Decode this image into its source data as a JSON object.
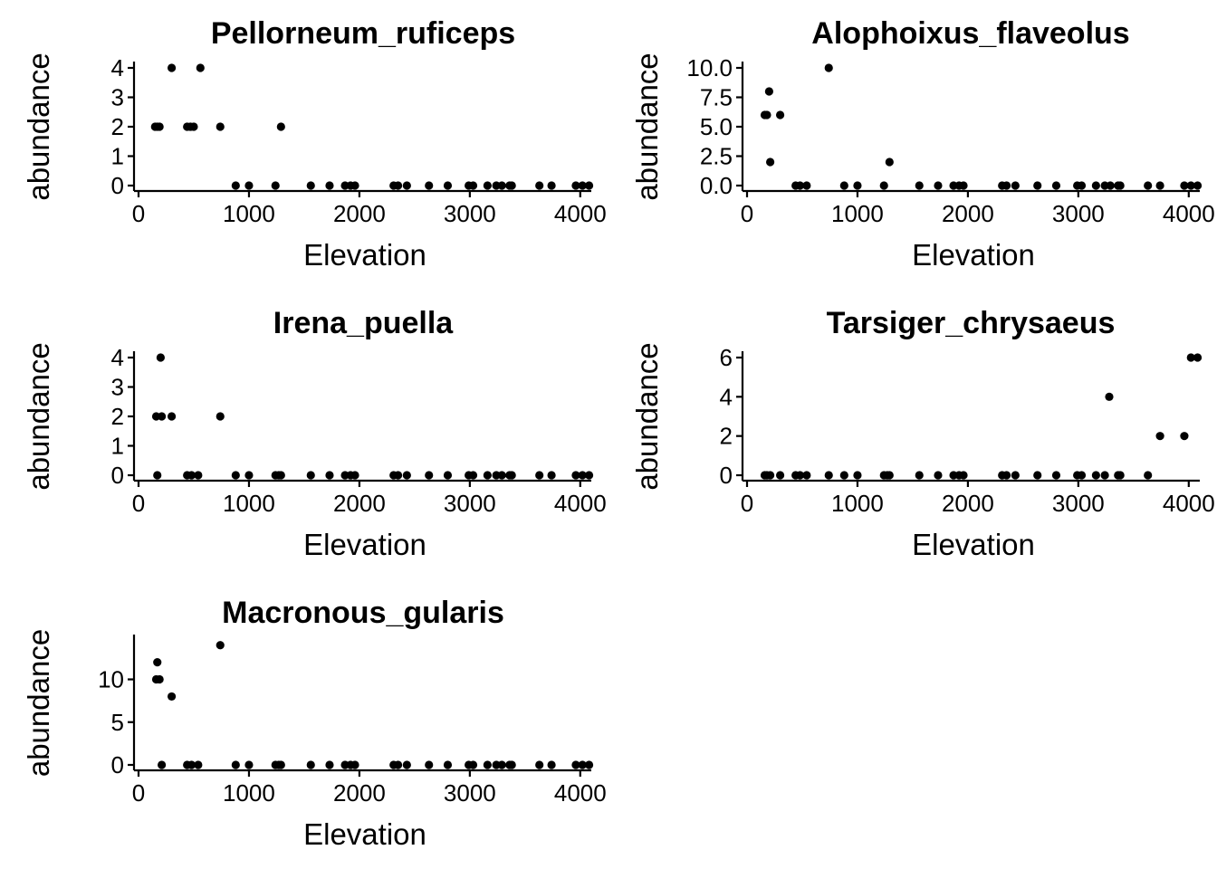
{
  "figure": {
    "background": "#ffffff",
    "point_color": "#000000"
  },
  "chart_data": [
    {
      "type": "scatter",
      "title": "Pellorneum_ruficeps",
      "xlabel": "Elevation",
      "ylabel": "abundance",
      "xlim": [
        0,
        4100
      ],
      "ylim": [
        0,
        4
      ],
      "xticks": [
        0,
        1000,
        2000,
        3000,
        4000
      ],
      "xtick_labels": [
        "0",
        "1000",
        "2000",
        "3000",
        "4000"
      ],
      "yticks": [
        0,
        1,
        2,
        3,
        4
      ],
      "ytick_labels": [
        "0",
        "1",
        "2",
        "3",
        "4"
      ],
      "grid": false,
      "x": [
        150,
        170,
        190,
        300,
        440,
        470,
        500,
        560,
        740,
        880,
        1000,
        1240,
        1290,
        1560,
        1730,
        1870,
        1920,
        1960,
        2310,
        2350,
        2430,
        2630,
        2800,
        2990,
        3030,
        3160,
        3240,
        3290,
        3360,
        3380,
        3630,
        3740,
        3960,
        4020,
        4080
      ],
      "y": [
        2,
        2,
        2,
        4,
        2,
        2,
        2,
        4,
        2,
        0,
        0,
        0,
        2,
        0,
        0,
        0,
        0,
        0,
        0,
        0,
        0,
        0,
        0,
        0,
        0,
        0,
        0,
        0,
        0,
        0,
        0,
        0,
        0,
        0,
        0
      ]
    },
    {
      "type": "scatter",
      "title": "Alophoixus_flaveolus",
      "xlabel": "Elevation",
      "ylabel": "abundance",
      "xlim": [
        0,
        4100
      ],
      "ylim": [
        0,
        10
      ],
      "xticks": [
        0,
        1000,
        2000,
        3000,
        4000
      ],
      "xtick_labels": [
        "0",
        "1000",
        "2000",
        "3000",
        "4000"
      ],
      "yticks": [
        0,
        2.5,
        5,
        7.5,
        10
      ],
      "ytick_labels": [
        "0.0",
        "2.5",
        "5.0",
        "7.5",
        "10.0"
      ],
      "grid": false,
      "x": [
        160,
        180,
        200,
        210,
        300,
        440,
        480,
        540,
        740,
        880,
        1000,
        1240,
        1290,
        1560,
        1730,
        1870,
        1920,
        1960,
        2310,
        2350,
        2430,
        2630,
        2800,
        2990,
        3030,
        3160,
        3240,
        3290,
        3360,
        3380,
        3630,
        3740,
        3960,
        4020,
        4080
      ],
      "y": [
        6,
        6,
        8,
        2,
        6,
        0,
        0,
        0,
        10,
        0,
        0,
        0,
        2,
        0,
        0,
        0,
        0,
        0,
        0,
        0,
        0,
        0,
        0,
        0,
        0,
        0,
        0,
        0,
        0,
        0,
        0,
        0,
        0,
        0,
        0
      ]
    },
    {
      "type": "scatter",
      "title": "Irena_puella",
      "xlabel": "Elevation",
      "ylabel": "abundance",
      "xlim": [
        0,
        4100
      ],
      "ylim": [
        0,
        4
      ],
      "xticks": [
        0,
        1000,
        2000,
        3000,
        4000
      ],
      "xtick_labels": [
        "0",
        "1000",
        "2000",
        "3000",
        "4000"
      ],
      "yticks": [
        0,
        1,
        2,
        3,
        4
      ],
      "ytick_labels": [
        "0",
        "1",
        "2",
        "3",
        "4"
      ],
      "grid": false,
      "x": [
        160,
        170,
        200,
        210,
        300,
        440,
        480,
        540,
        740,
        880,
        1000,
        1240,
        1270,
        1290,
        1560,
        1730,
        1870,
        1920,
        1960,
        2310,
        2350,
        2430,
        2630,
        2800,
        2990,
        3030,
        3160,
        3240,
        3290,
        3360,
        3380,
        3630,
        3740,
        3960,
        4020,
        4080
      ],
      "y": [
        2,
        0,
        4,
        2,
        2,
        0,
        0,
        0,
        2,
        0,
        0,
        0,
        0,
        0,
        0,
        0,
        0,
        0,
        0,
        0,
        0,
        0,
        0,
        0,
        0,
        0,
        0,
        0,
        0,
        0,
        0,
        0,
        0,
        0,
        0,
        0
      ]
    },
    {
      "type": "scatter",
      "title": "Tarsiger_chrysaeus",
      "xlabel": "Elevation",
      "ylabel": "abundance",
      "xlim": [
        0,
        4100
      ],
      "ylim": [
        0,
        6
      ],
      "xticks": [
        0,
        1000,
        2000,
        3000,
        4000
      ],
      "xtick_labels": [
        "0",
        "1000",
        "2000",
        "3000",
        "4000"
      ],
      "yticks": [
        0,
        2,
        4,
        6
      ],
      "ytick_labels": [
        "0",
        "2",
        "4",
        "6"
      ],
      "grid": false,
      "x": [
        160,
        180,
        210,
        300,
        440,
        480,
        540,
        740,
        880,
        1000,
        1240,
        1270,
        1290,
        1560,
        1730,
        1870,
        1920,
        1960,
        2310,
        2350,
        2430,
        2630,
        2800,
        2990,
        3030,
        3160,
        3240,
        3280,
        3360,
        3380,
        3630,
        3740,
        3960,
        4020,
        4080
      ],
      "y": [
        0,
        0,
        0,
        0,
        0,
        0,
        0,
        0,
        0,
        0,
        0,
        0,
        0,
        0,
        0,
        0,
        0,
        0,
        0,
        0,
        0,
        0,
        0,
        0,
        0,
        0,
        0,
        4,
        0,
        0,
        0,
        2,
        2,
        6,
        6
      ]
    },
    {
      "type": "scatter",
      "title": "Macronous_gularis",
      "xlabel": "Elevation",
      "ylabel": "abundance",
      "xlim": [
        0,
        4100
      ],
      "ylim": [
        0,
        14.5
      ],
      "xticks": [
        0,
        1000,
        2000,
        3000,
        4000
      ],
      "xtick_labels": [
        "0",
        "1000",
        "2000",
        "3000",
        "4000"
      ],
      "yticks": [
        0,
        5,
        10
      ],
      "ytick_labels": [
        "0",
        "5",
        "10"
      ],
      "grid": false,
      "x": [
        160,
        170,
        190,
        210,
        300,
        440,
        480,
        540,
        740,
        880,
        1000,
        1240,
        1270,
        1290,
        1560,
        1730,
        1870,
        1920,
        1960,
        2310,
        2350,
        2430,
        2630,
        2800,
        2990,
        3030,
        3160,
        3240,
        3290,
        3360,
        3380,
        3630,
        3740,
        3960,
        4020,
        4080
      ],
      "y": [
        10,
        12,
        10,
        0,
        8,
        0,
        0,
        0,
        14,
        0,
        0,
        0,
        0,
        0,
        0,
        0,
        0,
        0,
        0,
        0,
        0,
        0,
        0,
        0,
        0,
        0,
        0,
        0,
        0,
        0,
        0,
        0,
        0,
        0,
        0,
        0
      ]
    }
  ]
}
